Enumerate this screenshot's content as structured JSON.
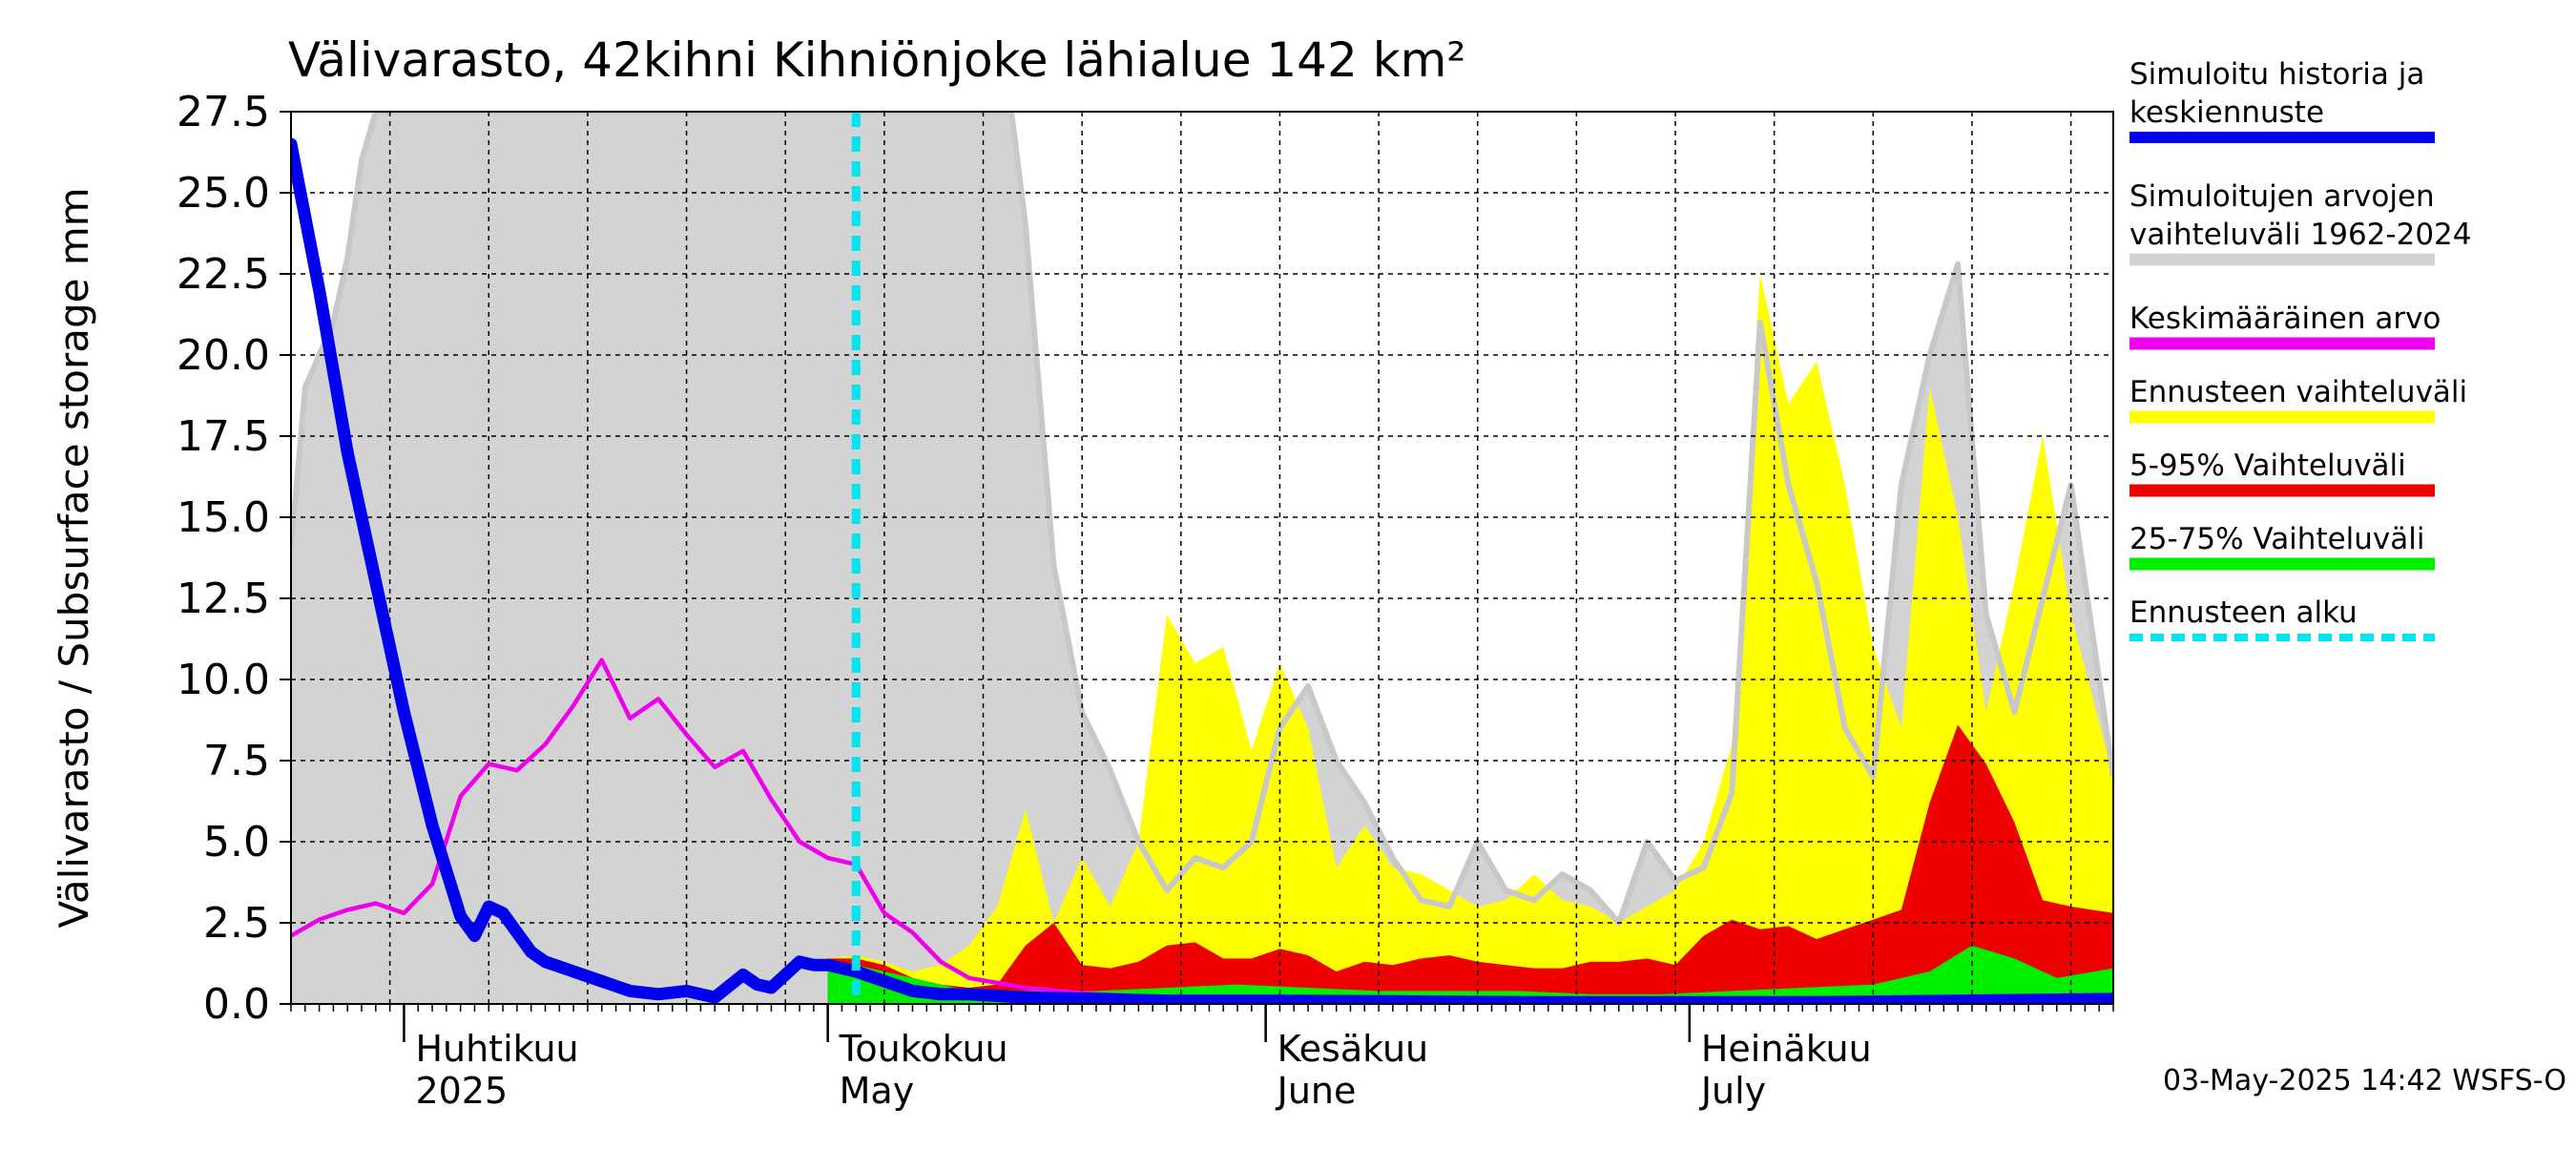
{
  "chart_data": {
    "type": "area",
    "title": "Välivarasto, 42kihni Kihniönjoke lähialue 142 km²",
    "ylabel": "Välivarasto / Subsurface storage  mm",
    "xlabel": "",
    "ylim": [
      0,
      27.5
    ],
    "yticks": [
      "0.0",
      "2.5",
      "5.0",
      "7.5",
      "10.0",
      "12.5",
      "15.0",
      "17.5",
      "20.0",
      "22.5",
      "25.0",
      "27.5"
    ],
    "xlim": [
      "2025-03-24",
      "2025-07-31"
    ],
    "month_labels": [
      {
        "date": "2025-04-01",
        "line1": "Huhtikuu",
        "line2": "2025"
      },
      {
        "date": "2025-05-01",
        "line1": "Toukokuu",
        "line2": "May"
      },
      {
        "date": "2025-06-01",
        "line1": "Kesäkuu",
        "line2": "June"
      },
      {
        "date": "2025-07-01",
        "line1": "Heinäkuu",
        "line2": "July"
      }
    ],
    "grid": true,
    "legend_position": "right",
    "footer": "03-May-2025 14:42 WSFS-O",
    "legend": [
      {
        "key": "history",
        "line1": "Simuloitu historia ja",
        "line2": "keskiennuste",
        "color": "#0000ee",
        "style": "solid"
      },
      {
        "key": "range",
        "line1": "Simuloitujen arvojen",
        "line2": "vaihteluväli 1962-2024",
        "color": "#d3d3d3",
        "style": "solid"
      },
      {
        "key": "mean",
        "line1": "Keskimääräinen arvo",
        "line2": "",
        "color": "#ee00ee",
        "style": "solid"
      },
      {
        "key": "fc_range",
        "line1": "Ennusteen vaihteluväli",
        "line2": "",
        "color": "#ffff00",
        "style": "solid"
      },
      {
        "key": "p5_95",
        "line1": "5-95% Vaihteluväli",
        "line2": "",
        "color": "#ee0000",
        "style": "solid"
      },
      {
        "key": "p25_75",
        "line1": "25-75% Vaihteluväli",
        "line2": "",
        "color": "#00ee00",
        "style": "solid"
      },
      {
        "key": "fc_start",
        "line1": "Ennusteen alku",
        "line2": "",
        "color": "#00e5ee",
        "style": "dashed"
      }
    ],
    "forecast_start": "2025-05-03",
    "series": {
      "history_range_upper": {
        "x": [
          "2025-03-24",
          "2025-03-25",
          "2025-03-26",
          "2025-03-27",
          "2025-03-28",
          "2025-03-29",
          "2025-03-30",
          "2025-04-02",
          "2025-05-14",
          "2025-05-15",
          "2025-05-17",
          "2025-05-19",
          "2025-05-21",
          "2025-05-23",
          "2025-05-25",
          "2025-05-27",
          "2025-05-29",
          "2025-05-31",
          "2025-06-02",
          "2025-06-04",
          "2025-06-06",
          "2025-06-08",
          "2025-06-10",
          "2025-06-12",
          "2025-06-14",
          "2025-06-16",
          "2025-06-18",
          "2025-06-20",
          "2025-06-22",
          "2025-06-24",
          "2025-06-26",
          "2025-06-28",
          "2025-06-30",
          "2025-07-02",
          "2025-07-04",
          "2025-07-06",
          "2025-07-08",
          "2025-07-10",
          "2025-07-12",
          "2025-07-14",
          "2025-07-16",
          "2025-07-18",
          "2025-07-20",
          "2025-07-22",
          "2025-07-24",
          "2025-07-26",
          "2025-07-28",
          "2025-07-31"
        ],
        "y": [
          14,
          19,
          20,
          21,
          23,
          26,
          27.5,
          27.5,
          27.5,
          24,
          13.5,
          9,
          7.2,
          5,
          3.5,
          4.5,
          4.2,
          5,
          8.5,
          9.8,
          7.5,
          6.2,
          4.5,
          3.2,
          3,
          5,
          3.5,
          3.2,
          4,
          3.5,
          2.5,
          5,
          3.8,
          4.2,
          6.5,
          21,
          16,
          13,
          8.5,
          7,
          16,
          20,
          22.8,
          12,
          9,
          12.5,
          16,
          7
        ]
      },
      "history_range_lower": {
        "x": [
          "2025-03-24",
          "2025-07-31"
        ],
        "y": [
          0,
          0
        ]
      },
      "forecast_range_upper": {
        "x": [
          "2025-05-01",
          "2025-05-03",
          "2025-05-05",
          "2025-05-07",
          "2025-05-09",
          "2025-05-11",
          "2025-05-13",
          "2025-05-15",
          "2025-05-17",
          "2025-05-19",
          "2025-05-21",
          "2025-05-23",
          "2025-05-25",
          "2025-05-27",
          "2025-05-29",
          "2025-05-31",
          "2025-06-02",
          "2025-06-04",
          "2025-06-06",
          "2025-06-08",
          "2025-06-10",
          "2025-06-12",
          "2025-06-14",
          "2025-06-16",
          "2025-06-18",
          "2025-06-20",
          "2025-06-22",
          "2025-06-24",
          "2025-06-26",
          "2025-06-28",
          "2025-06-30",
          "2025-07-02",
          "2025-07-04",
          "2025-07-06",
          "2025-07-08",
          "2025-07-10",
          "2025-07-12",
          "2025-07-14",
          "2025-07-16",
          "2025-07-18",
          "2025-07-20",
          "2025-07-22",
          "2025-07-24",
          "2025-07-26",
          "2025-07-28",
          "2025-07-31"
        ],
        "y": [
          1.4,
          1.5,
          1.3,
          1,
          1.2,
          1.8,
          3,
          6,
          2.5,
          4.5,
          3,
          5,
          12,
          10.5,
          11,
          7.8,
          10.5,
          8.5,
          4.2,
          5.5,
          4.2,
          4,
          3.5,
          3,
          3.2,
          4,
          3.2,
          3,
          2.5,
          3,
          3.5,
          5,
          8,
          22.5,
          18.5,
          19.8,
          16,
          11,
          8.5,
          19,
          15,
          9,
          13,
          17.5,
          12,
          7
        ]
      },
      "forecast_range_lower": {
        "x": [
          "2025-05-01",
          "2025-07-31"
        ],
        "y": [
          0,
          0
        ]
      },
      "p5_95_upper": {
        "x": [
          "2025-05-01",
          "2025-05-03",
          "2025-05-05",
          "2025-05-07",
          "2025-05-09",
          "2025-05-11",
          "2025-05-13",
          "2025-05-15",
          "2025-05-17",
          "2025-05-19",
          "2025-05-21",
          "2025-05-23",
          "2025-05-25",
          "2025-05-27",
          "2025-05-29",
          "2025-05-31",
          "2025-06-02",
          "2025-06-04",
          "2025-06-06",
          "2025-06-08",
          "2025-06-10",
          "2025-06-12",
          "2025-06-14",
          "2025-06-16",
          "2025-06-18",
          "2025-06-20",
          "2025-06-22",
          "2025-06-24",
          "2025-06-26",
          "2025-06-28",
          "2025-06-30",
          "2025-07-02",
          "2025-07-04",
          "2025-07-06",
          "2025-07-08",
          "2025-07-10",
          "2025-07-12",
          "2025-07-14",
          "2025-07-16",
          "2025-07-18",
          "2025-07-20",
          "2025-07-22",
          "2025-07-24",
          "2025-07-26",
          "2025-07-28",
          "2025-07-31"
        ],
        "y": [
          1.4,
          1.4,
          1.2,
          0.8,
          0.6,
          0.5,
          0.6,
          1.8,
          2.5,
          1.2,
          1.1,
          1.3,
          1.8,
          1.9,
          1.4,
          1.4,
          1.7,
          1.5,
          1.0,
          1.3,
          1.2,
          1.4,
          1.5,
          1.3,
          1.2,
          1.1,
          1.1,
          1.3,
          1.3,
          1.4,
          1.2,
          2.1,
          2.6,
          2.3,
          2.4,
          2.0,
          2.3,
          2.6,
          2.9,
          6.2,
          8.6,
          7.4,
          5.6,
          3.2,
          3.0,
          2.8
        ]
      },
      "p5_95_lower": {
        "x": [
          "2025-05-01",
          "2025-07-31"
        ],
        "y": [
          0,
          0
        ]
      },
      "p25_75_upper": {
        "x": [
          "2025-05-01",
          "2025-05-03",
          "2025-05-05",
          "2025-05-10",
          "2025-05-15",
          "2025-05-20",
          "2025-05-25",
          "2025-05-30",
          "2025-06-04",
          "2025-06-09",
          "2025-06-14",
          "2025-06-19",
          "2025-06-24",
          "2025-06-29",
          "2025-07-04",
          "2025-07-09",
          "2025-07-14",
          "2025-07-18",
          "2025-07-21",
          "2025-07-24",
          "2025-07-27",
          "2025-07-31"
        ],
        "y": [
          1.2,
          1.2,
          1.0,
          0.5,
          0.4,
          0.4,
          0.5,
          0.6,
          0.5,
          0.4,
          0.4,
          0.4,
          0.3,
          0.3,
          0.4,
          0.5,
          0.6,
          1.0,
          1.8,
          1.4,
          0.8,
          1.1
        ]
      },
      "p25_75_lower": {
        "x": [
          "2025-05-01",
          "2025-07-31"
        ],
        "y": [
          0,
          0
        ]
      },
      "mean": {
        "x": [
          "2025-03-24",
          "2025-03-26",
          "2025-03-28",
          "2025-03-30",
          "2025-04-01",
          "2025-04-03",
          "2025-04-05",
          "2025-04-07",
          "2025-04-09",
          "2025-04-11",
          "2025-04-13",
          "2025-04-15",
          "2025-04-17",
          "2025-04-19",
          "2025-04-21",
          "2025-04-23",
          "2025-04-25",
          "2025-04-27",
          "2025-04-29",
          "2025-05-01",
          "2025-05-03",
          "2025-05-05",
          "2025-05-07",
          "2025-05-09",
          "2025-05-11",
          "2025-05-15",
          "2025-05-20",
          "2025-05-25",
          "2025-06-01",
          "2025-06-10",
          "2025-06-20",
          "2025-07-01",
          "2025-07-10",
          "2025-07-20",
          "2025-07-31"
        ],
        "y": [
          2.1,
          2.6,
          2.9,
          3.1,
          2.8,
          3.7,
          6.4,
          7.4,
          7.2,
          8.0,
          9.2,
          10.6,
          8.8,
          9.4,
          8.3,
          7.3,
          7.8,
          6.3,
          5.0,
          4.5,
          4.3,
          2.8,
          2.2,
          1.3,
          0.8,
          0.5,
          0.3,
          0.2,
          0.15,
          0.12,
          0.1,
          0.1,
          0.1,
          0.12,
          0.15
        ]
      },
      "history": {
        "x": [
          "2025-03-24",
          "2025-03-26",
          "2025-03-28",
          "2025-03-30",
          "2025-04-01",
          "2025-04-03",
          "2025-04-05",
          "2025-04-06",
          "2025-04-07",
          "2025-04-08",
          "2025-04-09",
          "2025-04-10",
          "2025-04-11",
          "2025-04-13",
          "2025-04-15",
          "2025-04-17",
          "2025-04-19",
          "2025-04-21",
          "2025-04-23",
          "2025-04-25",
          "2025-04-26",
          "2025-04-27",
          "2025-04-29",
          "2025-04-30",
          "2025-05-01",
          "2025-05-03",
          "2025-05-05",
          "2025-05-07",
          "2025-05-09",
          "2025-05-11",
          "2025-05-15",
          "2025-05-20",
          "2025-05-25",
          "2025-06-01",
          "2025-06-10",
          "2025-06-20",
          "2025-07-01",
          "2025-07-10",
          "2025-07-20",
          "2025-07-31"
        ],
        "y": [
          26.5,
          22,
          17,
          13,
          9,
          5.5,
          2.7,
          2.1,
          3.0,
          2.8,
          2.2,
          1.6,
          1.3,
          1.0,
          0.7,
          0.4,
          0.3,
          0.4,
          0.2,
          0.9,
          0.6,
          0.5,
          1.3,
          1.2,
          1.2,
          1.0,
          0.7,
          0.4,
          0.3,
          0.3,
          0.2,
          0.15,
          0.1,
          0.1,
          0.08,
          0.05,
          0.05,
          0.05,
          0.1,
          0.15
        ]
      }
    }
  }
}
